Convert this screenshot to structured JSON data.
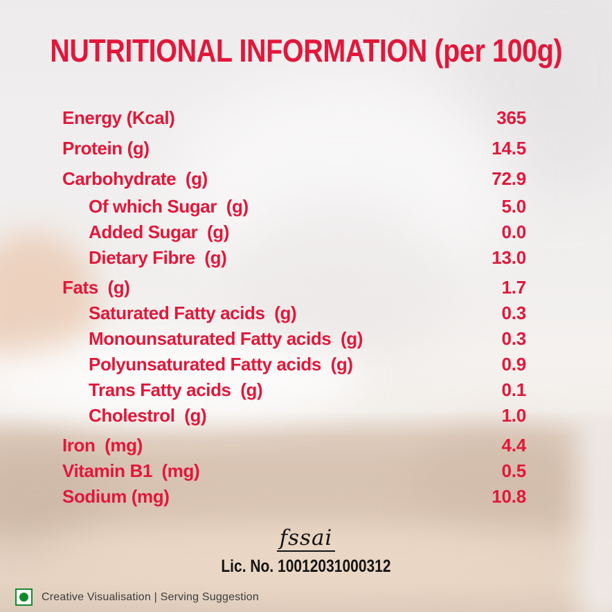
{
  "title": "NUTRITIONAL INFORMATION (per 100g)",
  "table": {
    "rows": [
      {
        "label": "Energy (Kcal)",
        "value": "365",
        "indent": 0
      },
      {
        "label": "Protein (g)",
        "value": "14.5",
        "indent": 0
      },
      {
        "label": "Carbohydrate  (g)",
        "value": "72.9",
        "indent": 0
      },
      {
        "label": "Of which Sugar  (g)",
        "value": "5.0",
        "indent": 1
      },
      {
        "label": "Added Sugar  (g)",
        "value": "0.0",
        "indent": 1
      },
      {
        "label": "Dietary Fibre  (g)",
        "value": "13.0",
        "indent": 1
      },
      {
        "label": "Fats  (g)",
        "value": "1.7",
        "indent": 0
      },
      {
        "label": "Saturated Fatty acids  (g)",
        "value": "0.3",
        "indent": 1
      },
      {
        "label": "Monounsaturated Fatty acids  (g)",
        "value": "0.3",
        "indent": 1
      },
      {
        "label": "Polyunsaturated Fatty acids  (g)",
        "value": "0.9",
        "indent": 1
      },
      {
        "label": "Trans Fatty acids  (g)",
        "value": "0.1",
        "indent": 1
      },
      {
        "label": "Cholestrol  (g)",
        "value": "1.0",
        "indent": 1
      },
      {
        "label": "Iron  (mg)",
        "value": "4.4",
        "indent": 0
      },
      {
        "label": "Vitamin B1  (mg)",
        "value": "0.5",
        "indent": 0
      },
      {
        "label": "Sodium (mg)",
        "value": "10.8",
        "indent": 0
      }
    ]
  },
  "footer": {
    "fssai_logo_text": "fssai",
    "license_text": "Lic. No. 10012031000312",
    "disclaimer_text": "Creative Visualisation | Serving Suggestion"
  },
  "colors": {
    "accent_red": "#e2173a",
    "veg_mark_green": "#118a2b",
    "text_black": "#141414"
  }
}
